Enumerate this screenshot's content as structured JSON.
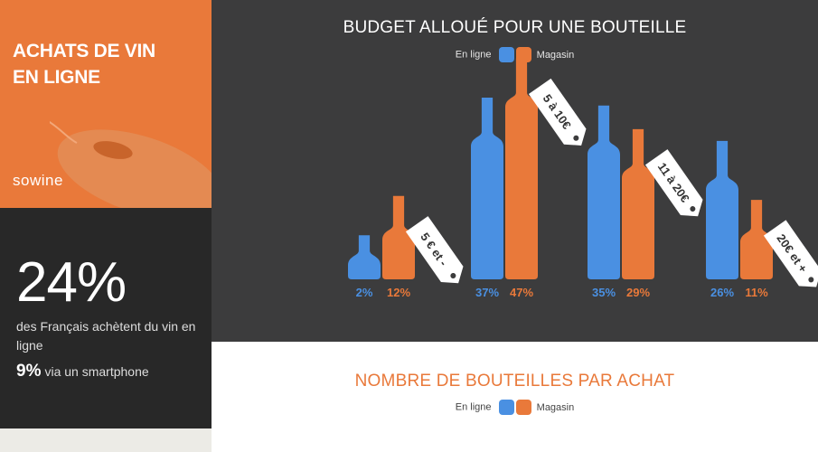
{
  "sidebar": {
    "title_line1": "ACHATS DE VIN",
    "title_line2": "EN LIGNE",
    "brand": "sowine",
    "big_stat": "24%",
    "stat_text": "des Français achètent du vin en ligne",
    "stat2_value": "9%",
    "stat2_text": "via un smartphone"
  },
  "legend": {
    "online": "En ligne",
    "store": "Magasin"
  },
  "colors": {
    "online": "#4a90e2",
    "store": "#e9793a",
    "panel": "#3c3c3d",
    "accent": "#e9793a"
  },
  "chart_data": {
    "type": "bar",
    "title": "BUDGET ALLOUÉ POUR UNE BOUTEILLE",
    "categories": [
      "5 € et -",
      "5 à 10€",
      "11 à 20€",
      "20€ et +"
    ],
    "series": [
      {
        "name": "En ligne",
        "values": [
          2,
          37,
          35,
          26
        ],
        "labels": [
          "2%",
          "37%",
          "35%",
          "26%"
        ]
      },
      {
        "name": "Magasin",
        "values": [
          12,
          47,
          29,
          11
        ],
        "labels": [
          "12%",
          "47%",
          "29%",
          "11%"
        ]
      }
    ]
  },
  "section2": {
    "title": "NOMBRE DE BOUTEILLES PAR ACHAT"
  }
}
